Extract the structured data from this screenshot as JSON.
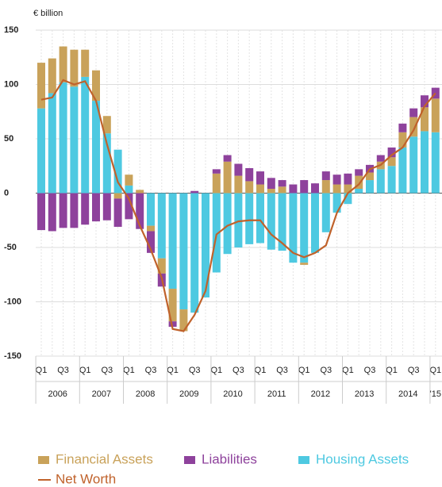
{
  "chart_data": {
    "type": "bar",
    "stacked": true,
    "y_label": "€ billion",
    "categories": [
      "Q1",
      null,
      "Q3",
      null,
      "Q1",
      null,
      "Q3",
      null,
      "Q1",
      null,
      "Q3",
      null,
      "Q1",
      null,
      "Q3",
      null,
      "Q1",
      null,
      "Q3",
      null,
      "Q1",
      null,
      "Q3",
      null,
      "Q1",
      null,
      "Q3",
      null,
      "Q1",
      null,
      "Q3",
      null,
      "Q1",
      null,
      "Q3",
      null,
      "Q1"
    ],
    "years": [
      "2006",
      "2007",
      "2008",
      "2009",
      "2010",
      "2011",
      "2012",
      "2013",
      "2014",
      "'15"
    ],
    "ylim": [
      -150,
      150
    ],
    "yticks": [
      150,
      100,
      50,
      0,
      -50,
      -100,
      -150
    ],
    "grid": true,
    "series": [
      {
        "name": "Housing Assets",
        "color": "#4ec9e1",
        "values": [
          78,
          92,
          102,
          98,
          107,
          85,
          55,
          40,
          7,
          0,
          -30,
          -60,
          -88,
          -107,
          -110,
          -96,
          -73,
          -56,
          -50,
          -47,
          -46,
          -52,
          -53,
          -64,
          -64,
          -55,
          -36,
          -18,
          -10,
          4,
          12,
          22,
          25,
          42,
          52,
          57,
          56
        ]
      },
      {
        "name": "Financial Assets",
        "color": "#c9a25a",
        "values": [
          42,
          32,
          33,
          34,
          25,
          28,
          16,
          -5,
          10,
          3,
          -5,
          -14,
          -30,
          -20,
          0,
          0,
          18,
          29,
          16,
          11,
          8,
          4,
          6,
          0,
          -2,
          0,
          12,
          8,
          8,
          12,
          7,
          7,
          8,
          14,
          18,
          22,
          31
        ]
      },
      {
        "name": "Liabilities",
        "color": "#8e429c",
        "values": [
          -34,
          -35,
          -32,
          -32,
          -29,
          -26,
          -25,
          -26,
          -24,
          -33,
          -20,
          -12,
          -5,
          0,
          2,
          0,
          4,
          6,
          11,
          12,
          12,
          10,
          6,
          8,
          12,
          9,
          8,
          9,
          10,
          6,
          7,
          6,
          9,
          8,
          8,
          11,
          10
        ]
      },
      {
        "name": "Net Worth",
        "type": "line",
        "color": "#c0622b",
        "values": [
          86,
          88,
          104,
          100,
          103,
          85,
          45,
          10,
          -5,
          -30,
          -52,
          -78,
          -125,
          -127,
          -112,
          -90,
          -38,
          -30,
          -26,
          -25,
          -25,
          -38,
          -46,
          -55,
          -59,
          -55,
          -48,
          -18,
          0,
          8,
          22,
          26,
          35,
          42,
          58,
          80,
          92
        ]
      }
    ]
  }
}
